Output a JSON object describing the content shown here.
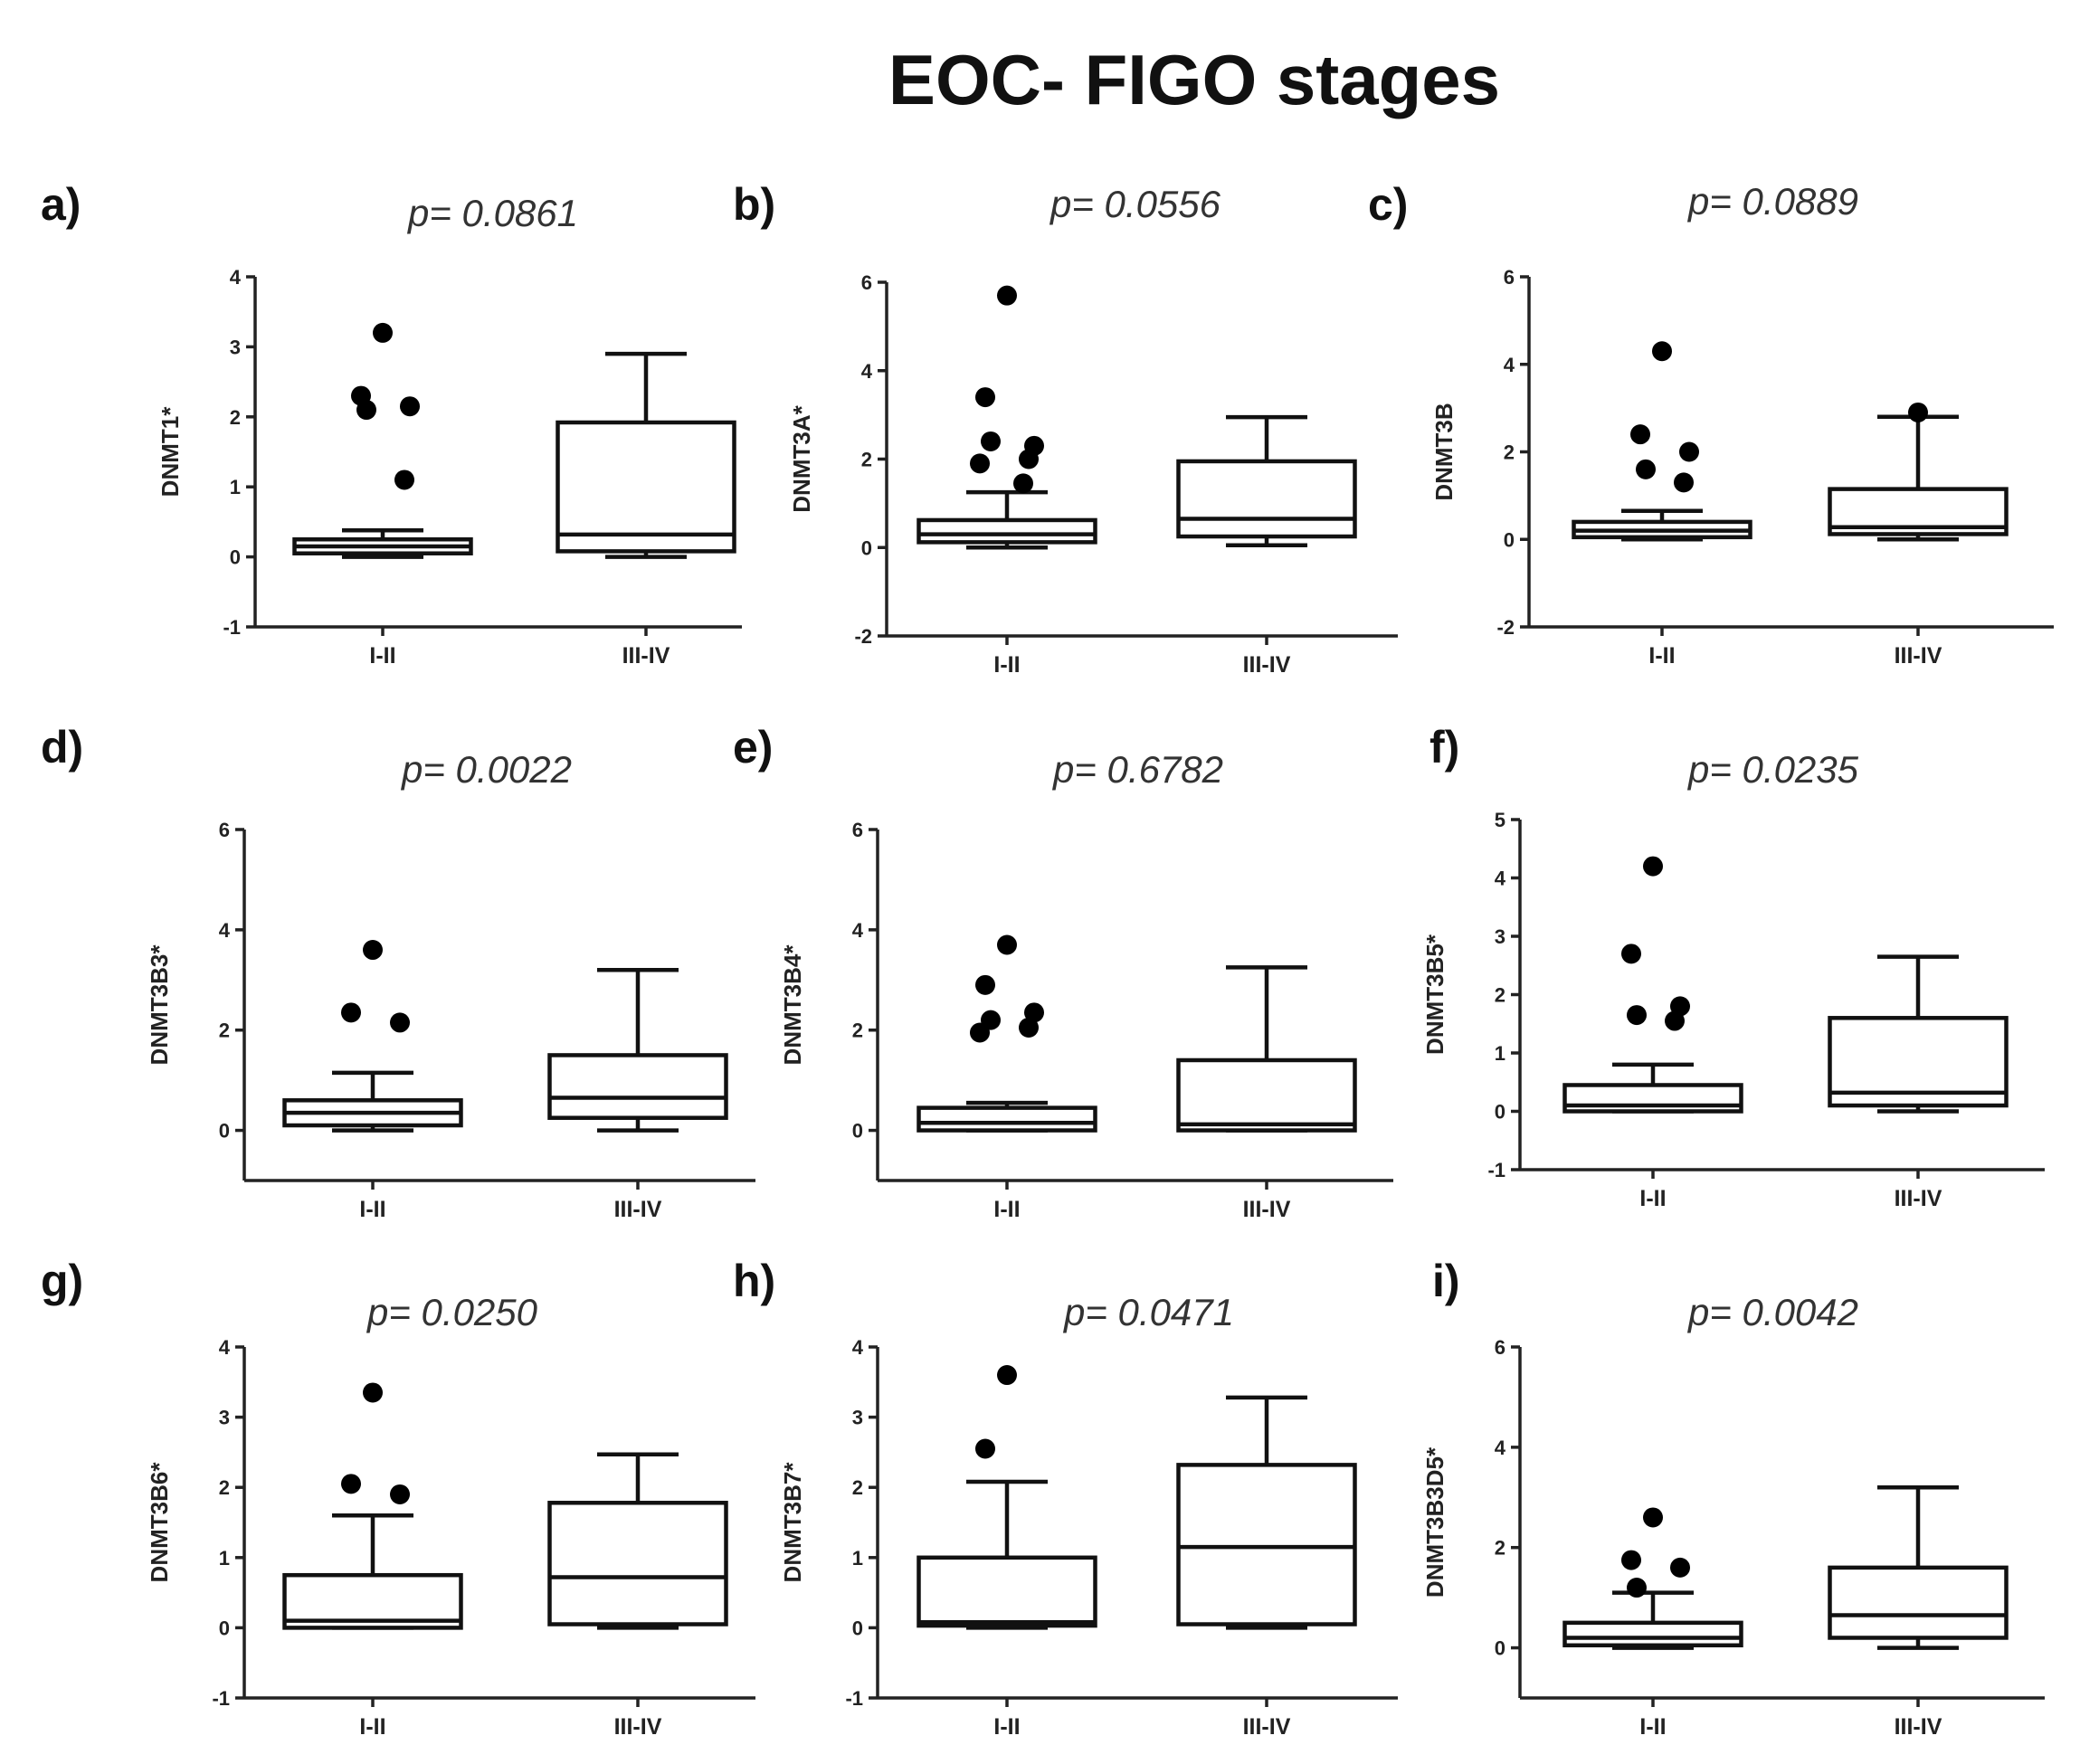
{
  "title": "EOC- FIGO stages",
  "chart_data": [
    {
      "letter": "a)",
      "type": "box",
      "pvalue": "p= 0.0861",
      "ylabel": "DNMT1*",
      "ylim": [
        -1,
        4
      ],
      "yticks": [
        -1,
        0,
        1,
        2,
        3,
        4
      ],
      "categories": [
        "I-II",
        "III-IV"
      ],
      "boxes": [
        {
          "whisker_low": 0.0,
          "q1": 0.05,
          "median": 0.15,
          "q3": 0.25,
          "whisker_high": 0.38,
          "outliers": [
            3.2,
            2.3,
            2.15,
            2.1,
            1.1
          ]
        },
        {
          "whisker_low": 0.0,
          "q1": 0.08,
          "median": 0.32,
          "q3": 1.92,
          "whisker_high": 2.9,
          "outliers": []
        }
      ]
    },
    {
      "letter": "b)",
      "type": "box",
      "pvalue": "p= 0.0556",
      "ylabel": "DNMT3A*",
      "ylim": [
        -2,
        6
      ],
      "yticks": [
        -2,
        0,
        2,
        4,
        6
      ],
      "categories": [
        "I-II",
        "III-IV"
      ],
      "boxes": [
        {
          "whisker_low": 0.0,
          "q1": 0.12,
          "median": 0.3,
          "q3": 0.62,
          "whisker_high": 1.25,
          "outliers": [
            5.7,
            3.4,
            2.3,
            2.4,
            2.0,
            1.9,
            1.45
          ]
        },
        {
          "whisker_low": 0.05,
          "q1": 0.25,
          "median": 0.65,
          "q3": 1.95,
          "whisker_high": 2.95,
          "outliers": []
        }
      ]
    },
    {
      "letter": "c)",
      "type": "box",
      "pvalue": "p= 0.0889",
      "ylabel": "DNMT3B",
      "ylim": [
        -2,
        6
      ],
      "yticks": [
        -2,
        0,
        2,
        4,
        6
      ],
      "categories": [
        "I-II",
        "III-IV"
      ],
      "boxes": [
        {
          "whisker_low": 0.0,
          "q1": 0.05,
          "median": 0.2,
          "q3": 0.4,
          "whisker_high": 0.65,
          "outliers": [
            4.3,
            2.4,
            2.0,
            1.6,
            1.3
          ]
        },
        {
          "whisker_low": 0.0,
          "q1": 0.12,
          "median": 0.28,
          "q3": 1.15,
          "whisker_high": 2.8,
          "outliers": [
            2.9
          ]
        }
      ]
    },
    {
      "letter": "d)",
      "type": "box",
      "pvalue": "p= 0.0022",
      "ylabel": "DNMT3B3*",
      "ylim": [
        -1,
        6
      ],
      "yticks": [
        0,
        2,
        4,
        6
      ],
      "categories": [
        "I-II",
        "III-IV"
      ],
      "boxes": [
        {
          "whisker_low": 0.0,
          "q1": 0.1,
          "median": 0.35,
          "q3": 0.6,
          "whisker_high": 1.15,
          "outliers": [
            3.6,
            2.35,
            2.15
          ]
        },
        {
          "whisker_low": 0.0,
          "q1": 0.25,
          "median": 0.65,
          "q3": 1.5,
          "whisker_high": 3.2,
          "outliers": []
        }
      ]
    },
    {
      "letter": "e)",
      "type": "box",
      "pvalue": "p= 0.6782",
      "ylabel": "DNMT3B4*",
      "ylim": [
        -1,
        6
      ],
      "yticks": [
        0,
        2,
        4,
        6
      ],
      "categories": [
        "I-II",
        "III-IV"
      ],
      "boxes": [
        {
          "whisker_low": 0.0,
          "q1": 0.0,
          "median": 0.15,
          "q3": 0.45,
          "whisker_high": 0.55,
          "outliers": [
            3.7,
            2.9,
            2.35,
            2.2,
            2.05,
            1.95
          ]
        },
        {
          "whisker_low": 0.0,
          "q1": 0.0,
          "median": 0.12,
          "q3": 1.4,
          "whisker_high": 3.25,
          "outliers": []
        }
      ]
    },
    {
      "letter": "f)",
      "type": "box",
      "pvalue": "p= 0.0235",
      "ylabel": "DNMT3B5*",
      "ylim": [
        -1,
        5
      ],
      "yticks": [
        -1,
        0,
        1,
        2,
        3,
        4,
        5
      ],
      "categories": [
        "I-II",
        "III-IV"
      ],
      "boxes": [
        {
          "whisker_low": 0.0,
          "q1": 0.0,
          "median": 0.1,
          "q3": 0.45,
          "whisker_high": 0.8,
          "outliers": [
            4.2,
            2.7,
            1.8,
            1.65,
            1.55
          ]
        },
        {
          "whisker_low": 0.0,
          "q1": 0.1,
          "median": 0.32,
          "q3": 1.6,
          "whisker_high": 2.65,
          "outliers": []
        }
      ]
    },
    {
      "letter": "g)",
      "type": "box",
      "pvalue": "p= 0.0250",
      "ylabel": "DNMT3B6*",
      "ylim": [
        -1,
        4
      ],
      "yticks": [
        -1,
        0,
        1,
        2,
        3,
        4
      ],
      "categories": [
        "I-II",
        "III-IV"
      ],
      "boxes": [
        {
          "whisker_low": 0.0,
          "q1": 0.0,
          "median": 0.1,
          "q3": 0.75,
          "whisker_high": 1.6,
          "outliers": [
            3.35,
            2.05,
            1.9
          ]
        },
        {
          "whisker_low": 0.0,
          "q1": 0.05,
          "median": 0.72,
          "q3": 1.78,
          "whisker_high": 2.47,
          "outliers": []
        }
      ]
    },
    {
      "letter": "h)",
      "type": "box",
      "pvalue": "p= 0.0471",
      "ylabel": "DNMT3B7*",
      "ylim": [
        -1,
        4
      ],
      "yticks": [
        -1,
        0,
        1,
        2,
        3,
        4
      ],
      "categories": [
        "I-II",
        "III-IV"
      ],
      "boxes": [
        {
          "whisker_low": 0.0,
          "q1": 0.03,
          "median": 0.08,
          "q3": 1.0,
          "whisker_high": 2.08,
          "outliers": [
            3.6,
            2.55
          ]
        },
        {
          "whisker_low": 0.0,
          "q1": 0.05,
          "median": 1.15,
          "q3": 2.32,
          "whisker_high": 3.28,
          "outliers": []
        }
      ]
    },
    {
      "letter": "i)",
      "type": "box",
      "pvalue": "p= 0.0042",
      "ylabel": "DNMT3B3D5*",
      "ylim": [
        -1,
        6
      ],
      "yticks": [
        0,
        2,
        4,
        6
      ],
      "categories": [
        "I-II",
        "III-IV"
      ],
      "boxes": [
        {
          "whisker_low": 0.0,
          "q1": 0.05,
          "median": 0.2,
          "q3": 0.5,
          "whisker_high": 1.1,
          "outliers": [
            2.6,
            1.75,
            1.6,
            1.2
          ]
        },
        {
          "whisker_low": 0.0,
          "q1": 0.2,
          "median": 0.65,
          "q3": 1.6,
          "whisker_high": 3.2,
          "outliers": []
        }
      ]
    }
  ]
}
